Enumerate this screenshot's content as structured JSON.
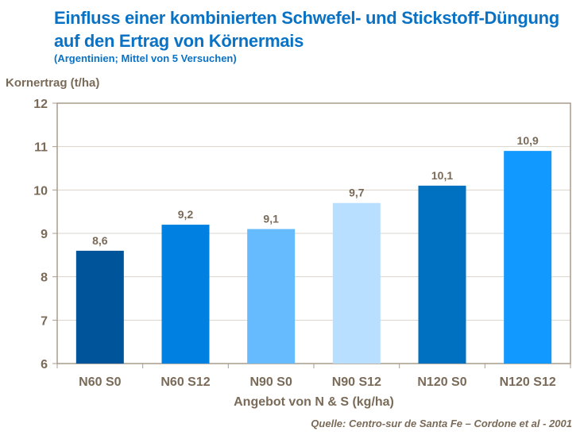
{
  "chart_data": {
    "type": "bar",
    "title": "Einfluss einer kombinierten Schwefel- und Stickstoff-Düngung auf den Ertrag von Körnermais",
    "subtitle": "(Argentinien;  Mittel von 5 Versuchen)",
    "ylabel": "Kornertrag (t/ha)",
    "xlabel": "Angebot von N & S (kg/ha)",
    "source": "Quelle: Centro-sur de Santa Fe – Cordone et al - 2001",
    "categories": [
      "N60 S0",
      "N60 S12",
      "N90 S0",
      "N90 S12",
      "N120 S0",
      "N120 S12"
    ],
    "values": [
      8.6,
      9.2,
      9.1,
      9.7,
      10.1,
      10.9
    ],
    "data_labels": [
      "8,6",
      "9,2",
      "9,1",
      "9,7",
      "10,1",
      "10,9"
    ],
    "colors": [
      "#00559a",
      "#0080e0",
      "#66bbff",
      "#b8dfff",
      "#0070c0",
      "#1199ff"
    ],
    "ylim": [
      6,
      12
    ],
    "yticks": [
      "6",
      "7",
      "8",
      "9",
      "10",
      "11",
      "12"
    ],
    "grid": true
  }
}
